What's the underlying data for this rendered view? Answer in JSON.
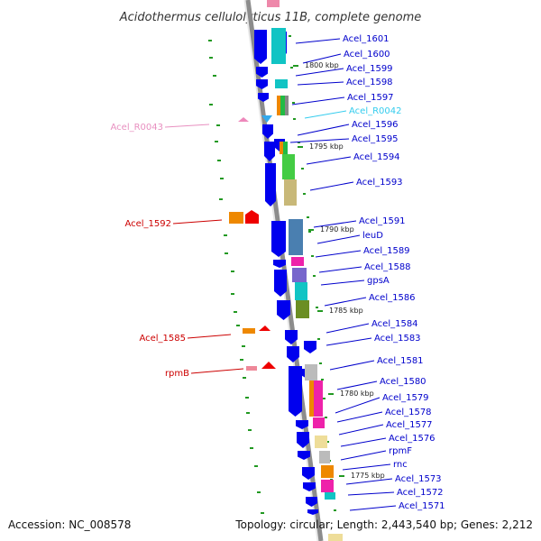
{
  "title": "Acidothermus cellulolyticus 11B, complete genome",
  "footer": {
    "accession": "Accession: NC_008578",
    "topology": "Topology: circular; Length: 2,443,540 bp; Genes: 2,212"
  },
  "colors": {
    "backbone": "#9a9a9a",
    "forward_arrow": "#0000ee",
    "label_blue": "#0000cc",
    "label_red": "#cc0000",
    "label_pink": "#e890c0",
    "label_cyan": "#33ccee",
    "ticks": "#229922"
  },
  "kbp_markers": [
    "1800 kbp",
    "1795 kbp",
    "1790 kbp",
    "1785 kbp",
    "1780 kbp",
    "1775 kbp"
  ],
  "right_labels": [
    "Acel_1601",
    "Acel_1600",
    "Acel_1599",
    "Acel_1598",
    "Acel_1597",
    "Acel_R0042",
    "Acel_1596",
    "Acel_1595",
    "Acel_1594",
    "Acel_1593",
    "Acel_1591",
    "leuD",
    "Acel_1589",
    "Acel_1588",
    "gpsA",
    "Acel_1586",
    "Acel_1584",
    "Acel_1583",
    "Acel_1581",
    "Acel_1580",
    "Acel_1579",
    "Acel_1578",
    "Acel_1577",
    "Acel_1576",
    "rpmF",
    "rnc",
    "Acel_1573",
    "Acel_1572",
    "Acel_1571"
  ],
  "left_labels": [
    "Acel_R0043",
    "Acel_1592",
    "Acel_1585",
    "rpmB"
  ]
}
